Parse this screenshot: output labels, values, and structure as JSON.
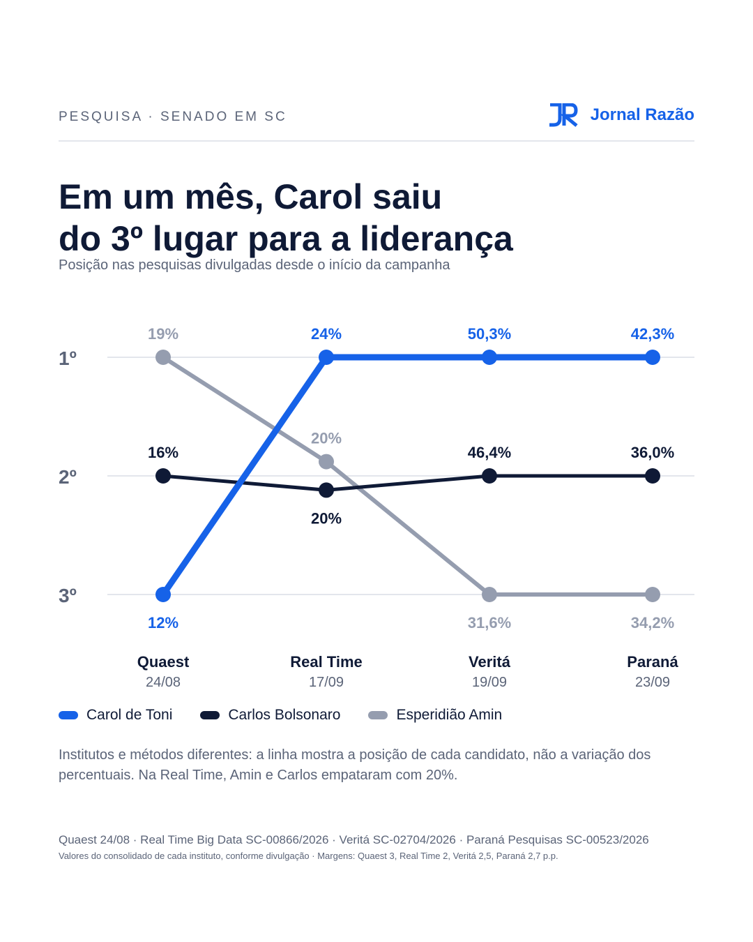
{
  "header": {
    "kicker": "PESQUISA · SENADO EM SC",
    "brand_mark": "JR",
    "brand_name": "Jornal Razão",
    "brand_color": "#1662e8"
  },
  "title_lines": [
    "Em um mês, Carol saiu",
    "do 3º lugar para a liderança"
  ],
  "subtitle": "Posição nas pesquisas divulgadas desde o início da campanha",
  "chart_data": {
    "type": "line",
    "title": "Em um mês, Carol saiu do 3º lugar para a liderança",
    "subtitle": "Posição nas pesquisas divulgadas desde o início da campanha",
    "y_axis": {
      "ticks": [
        "1º",
        "2º",
        "3º"
      ],
      "values": [
        1,
        2,
        3
      ],
      "inverted": true,
      "range": [
        1,
        3
      ]
    },
    "grid": true,
    "legend_position": "bottom-left",
    "categories": [
      {
        "name": "Quaest",
        "date": "24/08"
      },
      {
        "name": "Real Time",
        "date": "17/09"
      },
      {
        "name": "Veritá",
        "date": "19/09"
      },
      {
        "name": "Paraná",
        "date": "23/09"
      }
    ],
    "series": [
      {
        "name": "Carol de Toni",
        "color": "#1662e8",
        "positions": [
          3,
          1,
          1,
          1
        ],
        "labels": [
          "12%",
          "24%",
          "50,3%",
          "42,3%"
        ],
        "label_side": [
          "below",
          "above",
          "above",
          "above"
        ]
      },
      {
        "name": "Carlos Bolsonaro",
        "color": "#0f1a36",
        "positions": [
          2,
          2.12,
          2,
          2
        ],
        "labels": [
          "16%",
          "20%",
          "46,4%",
          "36,0%"
        ],
        "label_side": [
          "above",
          "below",
          "above",
          "above"
        ]
      },
      {
        "name": "Esperidião Amin",
        "color": "#959daf",
        "positions": [
          1,
          1.88,
          3,
          3
        ],
        "labels": [
          "19%",
          "20%",
          "31,6%",
          "34,2%"
        ],
        "label_side": [
          "above",
          "above",
          "below",
          "below"
        ]
      }
    ]
  },
  "note": "Institutos e métodos diferentes: a linha mostra a posição de cada candidato, não a variação dos percentuais. Na Real Time, Amin e Carlos empataram com 20%.",
  "source": "Quaest 24/08 · Real Time Big Data SC-00866/2026 · Veritá SC-02704/2026 · Paraná Pesquisas SC-00523/2026",
  "source_sub": "Valores do consolidado de cada instituto, conforme divulgação · Margens: Quaest 3, Real Time 2, Veritá 2,5, Paraná 2,7 p.p."
}
